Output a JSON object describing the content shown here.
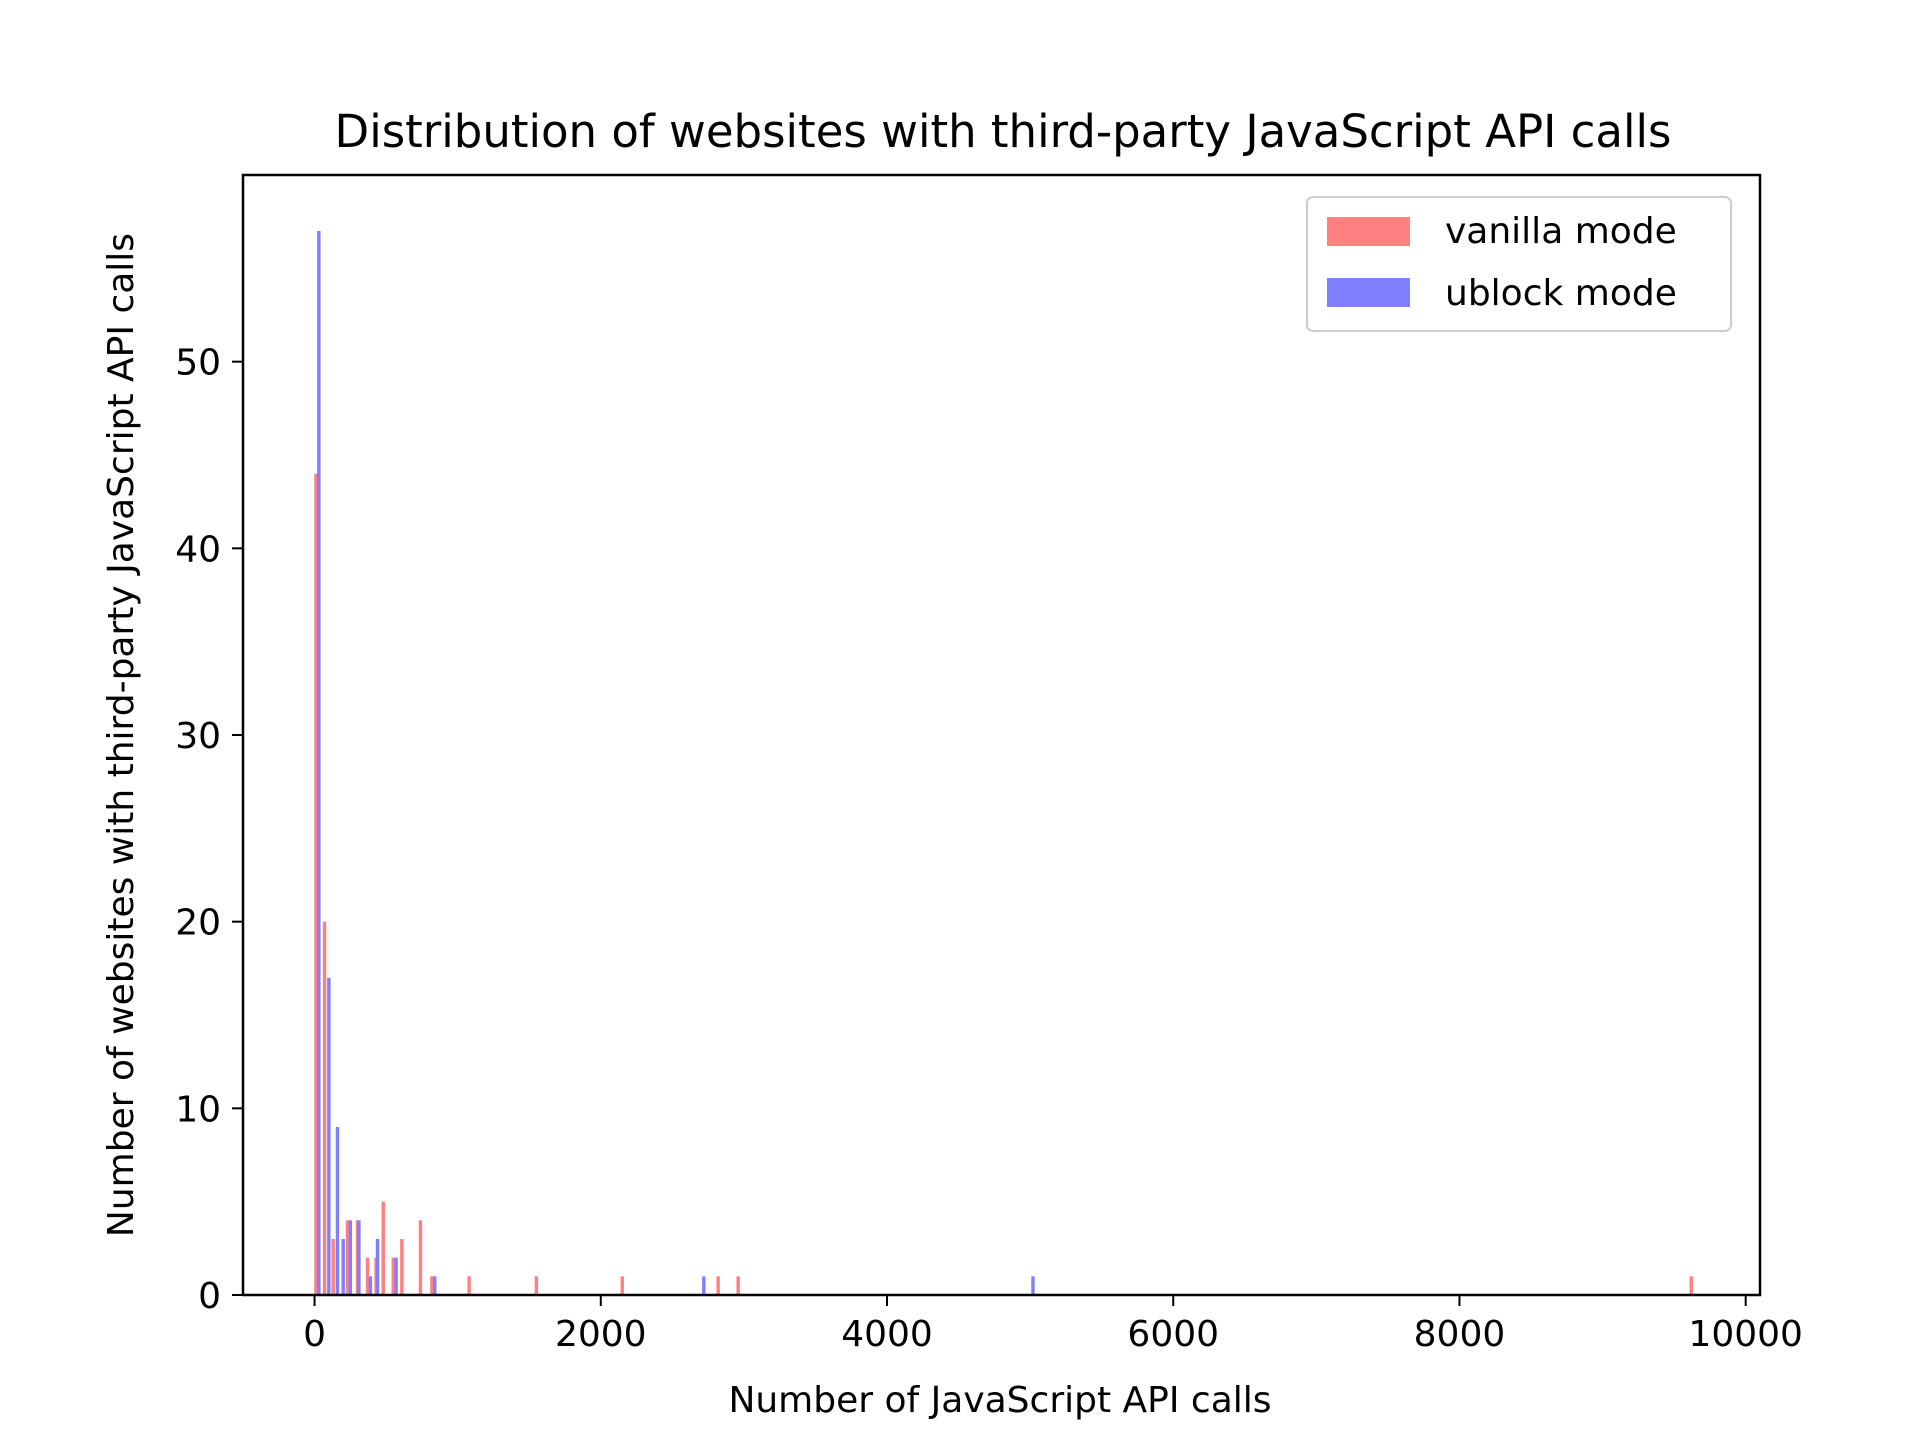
{
  "chart_data": {
    "type": "bar",
    "title": "Distribution of websites with third-party JavaScript API calls",
    "xlabel": "Number of JavaScript API calls",
    "ylabel": "Number of websites with third-party JavaScript API calls",
    "xlim": [
      -500,
      10100
    ],
    "ylim": [
      0,
      60
    ],
    "xticks": [
      0,
      2000,
      4000,
      6000,
      8000,
      10000
    ],
    "yticks": [
      0,
      10,
      20,
      30,
      40,
      50
    ],
    "grid": false,
    "legend_position": "top-right",
    "bar_width": 24,
    "series": [
      {
        "name": "vanilla mode",
        "color": "#ff8080",
        "points": [
          {
            "x": 10,
            "y": 44
          },
          {
            "x": 70,
            "y": 20
          },
          {
            "x": 130,
            "y": 3
          },
          {
            "x": 230,
            "y": 4
          },
          {
            "x": 300,
            "y": 4
          },
          {
            "x": 370,
            "y": 2
          },
          {
            "x": 430,
            "y": 2
          },
          {
            "x": 480,
            "y": 5
          },
          {
            "x": 550,
            "y": 2
          },
          {
            "x": 610,
            "y": 3
          },
          {
            "x": 740,
            "y": 4
          },
          {
            "x": 820,
            "y": 1
          },
          {
            "x": 1080,
            "y": 1
          },
          {
            "x": 1550,
            "y": 1
          },
          {
            "x": 2150,
            "y": 1
          },
          {
            "x": 2820,
            "y": 1
          },
          {
            "x": 2960,
            "y": 1
          },
          {
            "x": 9620,
            "y": 1
          }
        ]
      },
      {
        "name": "ublock mode",
        "color": "#8080ff",
        "points": [
          {
            "x": 30,
            "y": 57
          },
          {
            "x": 100,
            "y": 17
          },
          {
            "x": 160,
            "y": 9
          },
          {
            "x": 200,
            "y": 3
          },
          {
            "x": 250,
            "y": 4
          },
          {
            "x": 310,
            "y": 4
          },
          {
            "x": 390,
            "y": 1
          },
          {
            "x": 440,
            "y": 3
          },
          {
            "x": 570,
            "y": 2
          },
          {
            "x": 840,
            "y": 1
          },
          {
            "x": 2720,
            "y": 1
          },
          {
            "x": 5020,
            "y": 1
          }
        ]
      }
    ]
  }
}
